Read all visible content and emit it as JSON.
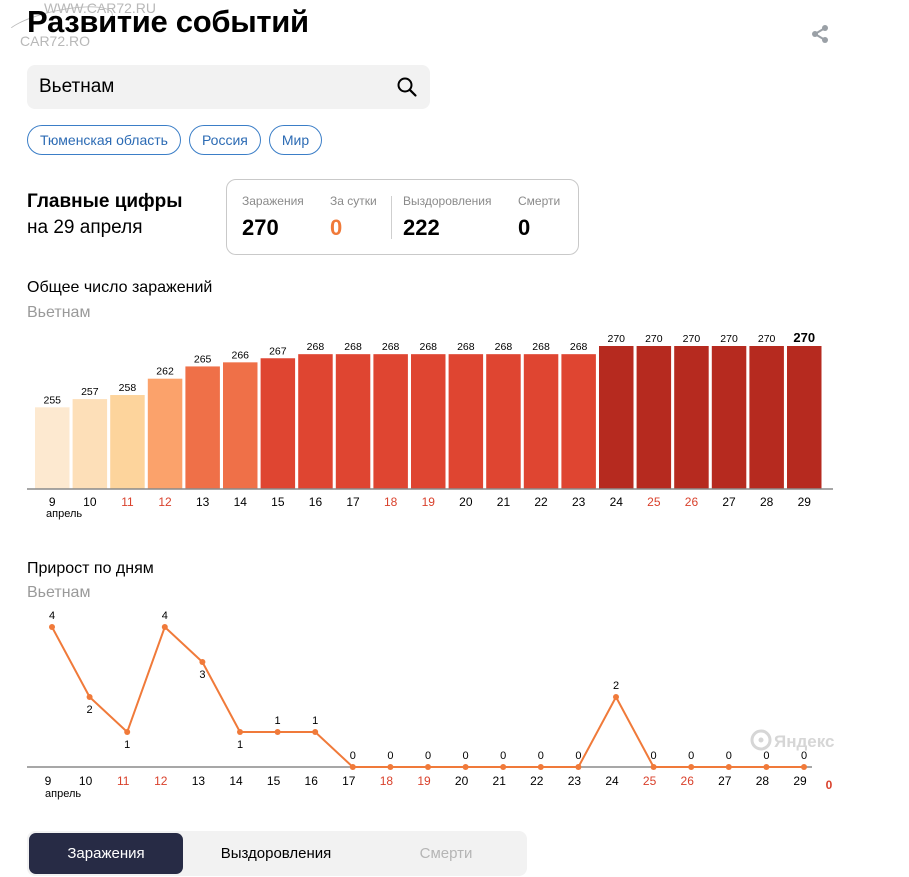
{
  "watermark": {
    "line1": "WWW.CAR72.RU",
    "line2": "CAR72.RO"
  },
  "title": "Развитие событий",
  "search": {
    "value": "Вьетнам",
    "placeholder": ""
  },
  "regions": [
    "Тюменская область",
    "Россия",
    "Мир"
  ],
  "main_figures": {
    "title": "Главные цифры",
    "date": "на 29 апреля",
    "stats": [
      {
        "label": "Заражения",
        "value": "270"
      },
      {
        "label": "За сутки",
        "value": "0"
      },
      {
        "label": "Выздоровления",
        "value": "222"
      },
      {
        "label": "Смерти",
        "value": "0"
      }
    ],
    "accent_color": "#f07a3a"
  },
  "total_chart": {
    "title": "Общее число заражений",
    "subtitle": "Вьетнам"
  },
  "daily_chart": {
    "title": "Прирост по дням",
    "subtitle": "Вьетнам",
    "last_value": "0"
  },
  "chart_data": [
    {
      "type": "bar",
      "title": "Общее число заражений",
      "subtitle": "Вьетнам",
      "categories": [
        "9",
        "10",
        "11",
        "12",
        "13",
        "14",
        "15",
        "16",
        "17",
        "18",
        "19",
        "20",
        "21",
        "22",
        "23",
        "24",
        "25",
        "26",
        "27",
        "28",
        "29"
      ],
      "month_label": "апрель",
      "values": [
        255,
        257,
        258,
        262,
        265,
        266,
        267,
        268,
        268,
        268,
        268,
        268,
        268,
        268,
        268,
        270,
        270,
        270,
        270,
        270,
        270
      ],
      "bar_colors": [
        "#fde9d0",
        "#fddfb8",
        "#fdd49c",
        "#fba26b",
        "#ef7048",
        "#ef7048",
        "#df4531",
        "#df4531",
        "#df4531",
        "#df4531",
        "#df4531",
        "#df4531",
        "#df4531",
        "#df4531",
        "#df4531",
        "#b62a1f",
        "#b62a1f",
        "#b62a1f",
        "#b62a1f",
        "#b62a1f",
        "#b62a1f"
      ],
      "weekend_categories": [
        "11",
        "12",
        "18",
        "19",
        "25",
        "26"
      ],
      "weekend_color": "#d9412c",
      "ylim": [
        235,
        270
      ]
    },
    {
      "type": "line",
      "title": "Прирост по дням",
      "subtitle": "Вьетнам",
      "categories": [
        "9",
        "10",
        "11",
        "12",
        "13",
        "14",
        "15",
        "16",
        "17",
        "18",
        "19",
        "20",
        "21",
        "22",
        "23",
        "24",
        "25",
        "26",
        "27",
        "28",
        "29"
      ],
      "month_label": "апрель",
      "values": [
        4,
        2,
        1,
        4,
        3,
        1,
        1,
        1,
        0,
        0,
        0,
        0,
        0,
        0,
        0,
        2,
        0,
        0,
        0,
        0,
        0
      ],
      "line_color": "#f07a3a",
      "weekend_categories": [
        "11",
        "12",
        "18",
        "19",
        "25",
        "26"
      ],
      "weekend_color": "#d9412c",
      "ylim": [
        0,
        4
      ],
      "watermark": "Яндекс"
    }
  ],
  "tabs": [
    {
      "label": "Заражения",
      "state": "active"
    },
    {
      "label": "Выздоровления",
      "state": "normal"
    },
    {
      "label": "Смерти",
      "state": "disabled"
    }
  ]
}
